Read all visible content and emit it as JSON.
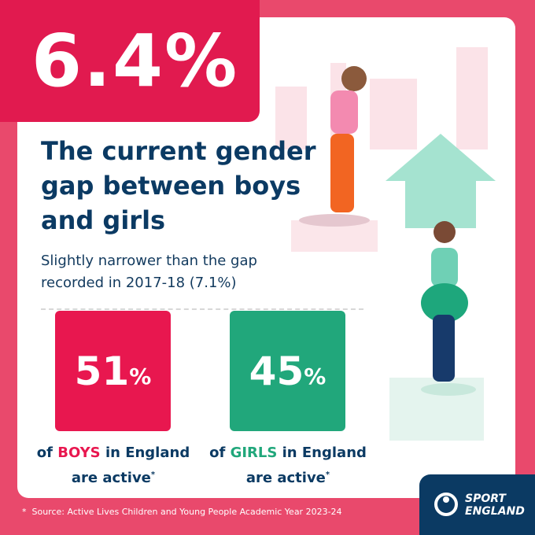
{
  "headline": {
    "stat": "6.4%",
    "title_lines": [
      "The current gender",
      "gap between boys",
      "and girls"
    ],
    "subtitle_lines": [
      "Slightly narrower than the gap",
      "recorded in 2017-18 (7.1%)"
    ]
  },
  "stats": [
    {
      "value": "51",
      "unit": "%",
      "before": "of",
      "group": "BOYS",
      "middle": "in England",
      "last": "are active",
      "marker": "*"
    },
    {
      "value": "45",
      "unit": "%",
      "before": "of",
      "group": "GIRLS",
      "middle": "in England",
      "last": "are active",
      "marker": "*"
    }
  ],
  "footnote": {
    "marker": "*",
    "text": "Source: Active Lives Children and Young People Academic Year 2023-24"
  },
  "logo": {
    "line1": "SPORT",
    "line2": "ENGLAND"
  }
}
